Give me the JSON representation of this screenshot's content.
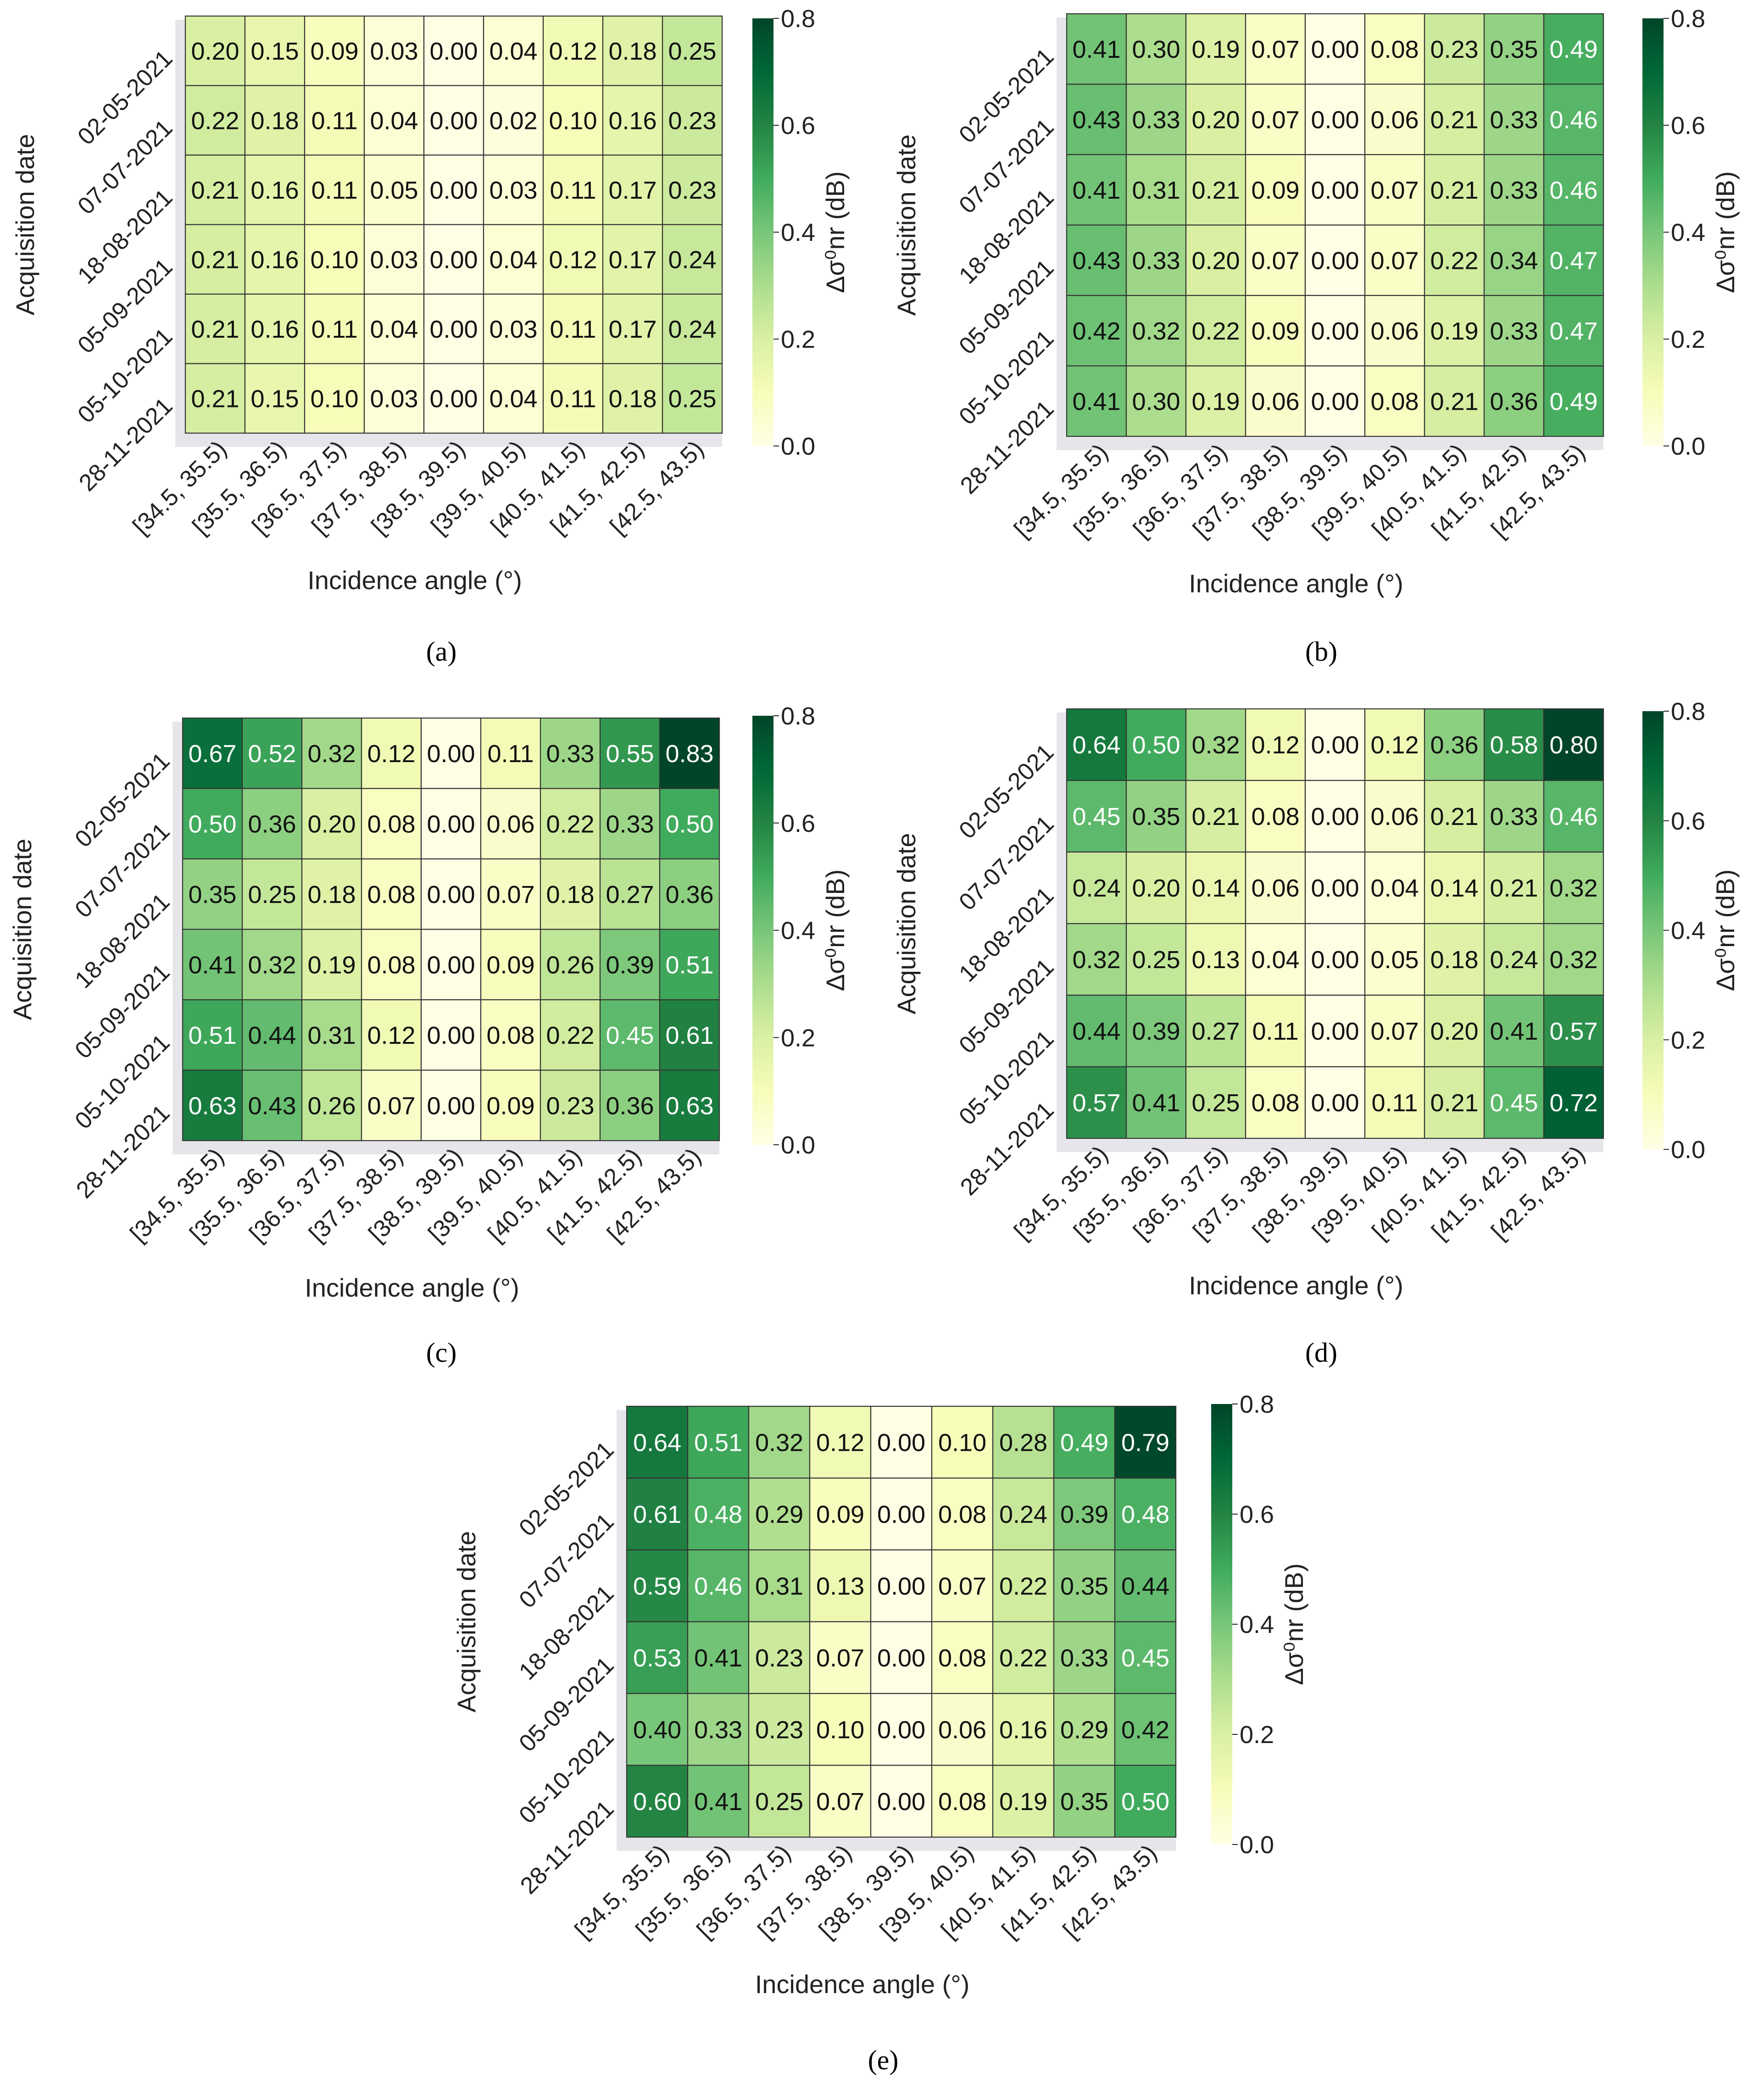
{
  "chart_data": [
    {
      "type": "heatmap",
      "panel_label": "(a)",
      "ylabel": "Acquisition date",
      "xlabel": "Incidence angle (°)",
      "colorbar_label": "Δσ⁰nr (dB)",
      "colorbar_range": [
        0.0,
        0.8
      ],
      "colorbar_ticks": [
        "0.0",
        "0.2",
        "0.4",
        "0.6",
        "0.8"
      ],
      "rows": [
        "02-05-2021",
        "07-07-2021",
        "18-08-2021",
        "05-09-2021",
        "05-10-2021",
        "28-11-2021"
      ],
      "columns": [
        "[34.5, 35.5)",
        "[35.5, 36.5)",
        "[36.5, 37.5)",
        "[37.5, 38.5)",
        "[38.5, 39.5)",
        "[39.5, 40.5)",
        "[40.5, 41.5)",
        "[41.5, 42.5)",
        "[42.5, 43.5)"
      ],
      "values": [
        [
          0.2,
          0.15,
          0.09,
          0.03,
          0.0,
          0.04,
          0.12,
          0.18,
          0.25
        ],
        [
          0.22,
          0.18,
          0.11,
          0.04,
          0.0,
          0.02,
          0.1,
          0.16,
          0.23
        ],
        [
          0.21,
          0.16,
          0.11,
          0.05,
          0.0,
          0.03,
          0.11,
          0.17,
          0.23
        ],
        [
          0.21,
          0.16,
          0.1,
          0.03,
          0.0,
          0.04,
          0.12,
          0.17,
          0.24
        ],
        [
          0.21,
          0.16,
          0.11,
          0.04,
          0.0,
          0.03,
          0.11,
          0.17,
          0.24
        ],
        [
          0.21,
          0.15,
          0.1,
          0.03,
          0.0,
          0.04,
          0.11,
          0.18,
          0.25
        ]
      ]
    },
    {
      "type": "heatmap",
      "panel_label": "(b)",
      "ylabel": "Acquisition date",
      "xlabel": "Incidence angle (°)",
      "colorbar_label": "Δσ⁰nr (dB)",
      "colorbar_range": [
        0.0,
        0.8
      ],
      "colorbar_ticks": [
        "0.0",
        "0.2",
        "0.4",
        "0.6",
        "0.8"
      ],
      "rows": [
        "02-05-2021",
        "07-07-2021",
        "18-08-2021",
        "05-09-2021",
        "05-10-2021",
        "28-11-2021"
      ],
      "columns": [
        "[34.5, 35.5)",
        "[35.5, 36.5)",
        "[36.5, 37.5)",
        "[37.5, 38.5)",
        "[38.5, 39.5)",
        "[39.5, 40.5)",
        "[40.5, 41.5)",
        "[41.5, 42.5)",
        "[42.5, 43.5)"
      ],
      "values": [
        [
          0.41,
          0.3,
          0.19,
          0.07,
          0.0,
          0.08,
          0.23,
          0.35,
          0.49
        ],
        [
          0.43,
          0.33,
          0.2,
          0.07,
          0.0,
          0.06,
          0.21,
          0.33,
          0.46
        ],
        [
          0.41,
          0.31,
          0.21,
          0.09,
          0.0,
          0.07,
          0.21,
          0.33,
          0.46
        ],
        [
          0.43,
          0.33,
          0.2,
          0.07,
          0.0,
          0.07,
          0.22,
          0.34,
          0.47
        ],
        [
          0.42,
          0.32,
          0.22,
          0.09,
          0.0,
          0.06,
          0.19,
          0.33,
          0.47
        ],
        [
          0.41,
          0.3,
          0.19,
          0.06,
          0.0,
          0.08,
          0.21,
          0.36,
          0.49
        ]
      ]
    },
    {
      "type": "heatmap",
      "panel_label": "(c)",
      "ylabel": "Acquisition date",
      "xlabel": "Incidence angle (°)",
      "colorbar_label": "Δσ⁰nr (dB)",
      "colorbar_range": [
        0.0,
        0.8
      ],
      "colorbar_ticks": [
        "0.0",
        "0.2",
        "0.4",
        "0.6",
        "0.8"
      ],
      "rows": [
        "02-05-2021",
        "07-07-2021",
        "18-08-2021",
        "05-09-2021",
        "05-10-2021",
        "28-11-2021"
      ],
      "columns": [
        "[34.5, 35.5)",
        "[35.5, 36.5)",
        "[36.5, 37.5)",
        "[37.5, 38.5)",
        "[38.5, 39.5)",
        "[39.5, 40.5)",
        "[40.5, 41.5)",
        "[41.5, 42.5)",
        "[42.5, 43.5)"
      ],
      "values": [
        [
          0.67,
          0.52,
          0.32,
          0.12,
          0.0,
          0.11,
          0.33,
          0.55,
          0.83
        ],
        [
          0.5,
          0.36,
          0.2,
          0.08,
          0.0,
          0.06,
          0.22,
          0.33,
          0.5
        ],
        [
          0.35,
          0.25,
          0.18,
          0.08,
          0.0,
          0.07,
          0.18,
          0.27,
          0.36
        ],
        [
          0.41,
          0.32,
          0.19,
          0.08,
          0.0,
          0.09,
          0.26,
          0.39,
          0.51
        ],
        [
          0.51,
          0.44,
          0.31,
          0.12,
          0.0,
          0.08,
          0.22,
          0.45,
          0.61
        ],
        [
          0.63,
          0.43,
          0.26,
          0.07,
          0.0,
          0.09,
          0.23,
          0.36,
          0.63
        ]
      ]
    },
    {
      "type": "heatmap",
      "panel_label": "(d)",
      "ylabel": "Acquisition date",
      "xlabel": "Incidence angle (°)",
      "colorbar_label": "Δσ⁰nr (dB)",
      "colorbar_range": [
        0.0,
        0.8
      ],
      "colorbar_ticks": [
        "0.0",
        "0.2",
        "0.4",
        "0.6",
        "0.8"
      ],
      "rows": [
        "02-05-2021",
        "07-07-2021",
        "18-08-2021",
        "05-09-2021",
        "05-10-2021",
        "28-11-2021"
      ],
      "columns": [
        "[34.5, 35.5)",
        "[35.5, 36.5)",
        "[36.5, 37.5)",
        "[37.5, 38.5)",
        "[38.5, 39.5)",
        "[39.5, 40.5)",
        "[40.5, 41.5)",
        "[41.5, 42.5)",
        "[42.5, 43.5)"
      ],
      "values": [
        [
          0.64,
          0.5,
          0.32,
          0.12,
          0.0,
          0.12,
          0.36,
          0.58,
          0.8
        ],
        [
          0.45,
          0.35,
          0.21,
          0.08,
          0.0,
          0.06,
          0.21,
          0.33,
          0.46
        ],
        [
          0.24,
          0.2,
          0.14,
          0.06,
          0.0,
          0.04,
          0.14,
          0.21,
          0.32
        ],
        [
          0.32,
          0.25,
          0.13,
          0.04,
          0.0,
          0.05,
          0.18,
          0.24,
          0.32
        ],
        [
          0.44,
          0.39,
          0.27,
          0.11,
          0.0,
          0.07,
          0.2,
          0.41,
          0.57
        ],
        [
          0.57,
          0.41,
          0.25,
          0.08,
          0.0,
          0.11,
          0.21,
          0.45,
          0.72
        ]
      ]
    },
    {
      "type": "heatmap",
      "panel_label": "(e)",
      "ylabel": "Acquisition date",
      "xlabel": "Incidence angle (°)",
      "colorbar_label": "Δσ⁰nr (dB)",
      "colorbar_range": [
        0.0,
        0.8
      ],
      "colorbar_ticks": [
        "0.0",
        "0.2",
        "0.4",
        "0.6",
        "0.8"
      ],
      "rows": [
        "02-05-2021",
        "07-07-2021",
        "18-08-2021",
        "05-09-2021",
        "05-10-2021",
        "28-11-2021"
      ],
      "columns": [
        "[34.5, 35.5)",
        "[35.5, 36.5)",
        "[36.5, 37.5)",
        "[37.5, 38.5)",
        "[38.5, 39.5)",
        "[39.5, 40.5)",
        "[40.5, 41.5)",
        "[41.5, 42.5)",
        "[42.5, 43.5)"
      ],
      "values": [
        [
          0.64,
          0.51,
          0.32,
          0.12,
          0.0,
          0.1,
          0.28,
          0.49,
          0.79
        ],
        [
          0.61,
          0.48,
          0.29,
          0.09,
          0.0,
          0.08,
          0.24,
          0.39,
          0.48
        ],
        [
          0.59,
          0.46,
          0.31,
          0.13,
          0.0,
          0.07,
          0.22,
          0.35,
          0.44
        ],
        [
          0.53,
          0.41,
          0.23,
          0.07,
          0.0,
          0.08,
          0.22,
          0.33,
          0.45
        ],
        [
          0.4,
          0.33,
          0.23,
          0.1,
          0.0,
          0.06,
          0.16,
          0.29,
          0.42
        ],
        [
          0.6,
          0.41,
          0.25,
          0.07,
          0.0,
          0.08,
          0.19,
          0.35,
          0.5
        ]
      ]
    }
  ],
  "colormap": {
    "name": "YlGn",
    "stops": [
      "#ffffe5",
      "#f7fcb9",
      "#d9f0a3",
      "#addd8e",
      "#78c679",
      "#41ab5d",
      "#238443",
      "#006837",
      "#004529"
    ]
  }
}
